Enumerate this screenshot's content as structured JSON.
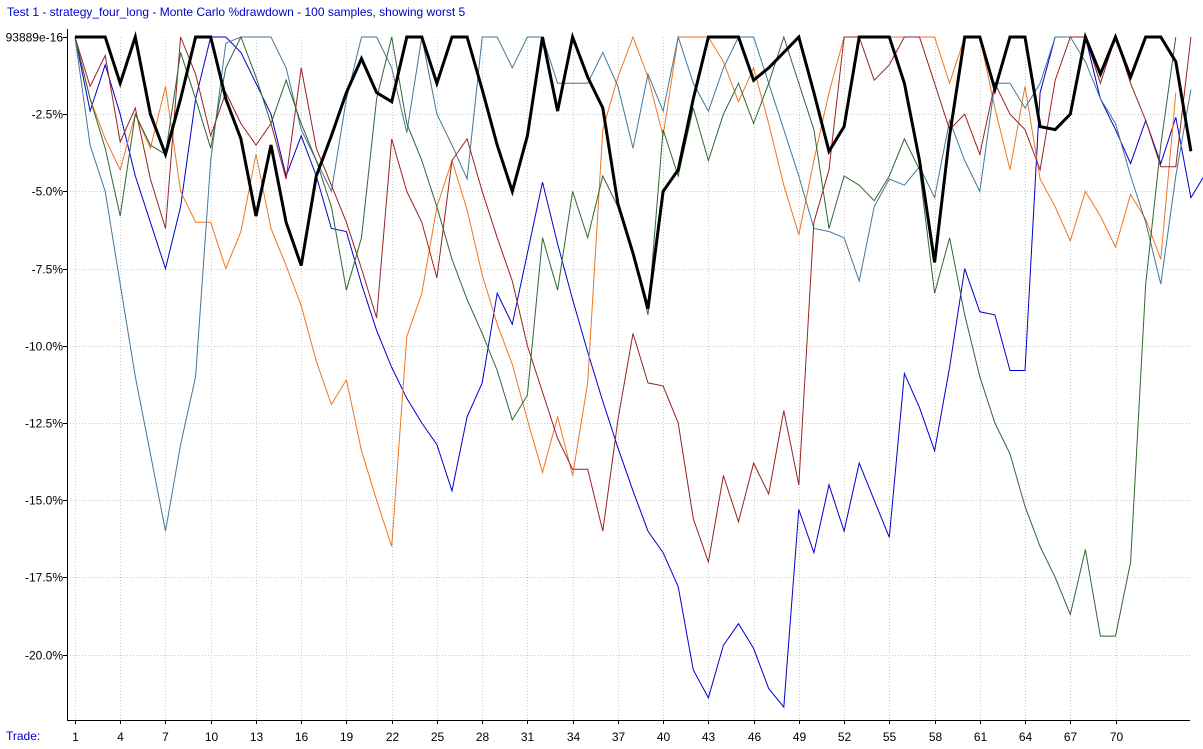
{
  "chart_data": {
    "type": "line",
    "title": "Test 1 - strategy_four_long - Monte Carlo %drawdown - 100 samples, showing worst 5",
    "xlabel": "Trade:",
    "ylabel": "",
    "y_top_label": "93889e-16",
    "yticks": [
      "-2.5%",
      "-5.0%",
      "-7.5%",
      "-10.0%",
      "-12.5%",
      "-15.0%",
      "-17.5%",
      "-20.0%"
    ],
    "ytick_values": [
      -2.5,
      -5.0,
      -7.5,
      -10.0,
      -12.5,
      -15.0,
      -17.5,
      -20.0
    ],
    "xticks": [
      "1",
      "4",
      "7",
      "10",
      "13",
      "16",
      "19",
      "22",
      "25",
      "28",
      "31",
      "34",
      "37",
      "40",
      "43",
      "46",
      "49",
      "52",
      "55",
      "58",
      "61",
      "64",
      "67",
      "70"
    ],
    "xtick_values": [
      1,
      4,
      7,
      10,
      13,
      16,
      19,
      22,
      25,
      28,
      31,
      34,
      37,
      40,
      43,
      46,
      49,
      52,
      55,
      58,
      61,
      64,
      67,
      70
    ],
    "xlim": [
      0,
      74
    ],
    "ylim": [
      -22,
      0
    ],
    "grid": true,
    "legend": "none",
    "series": [
      {
        "color": "#000000",
        "width": 3,
        "values": [
          0,
          0,
          0,
          -1.5,
          0,
          -2.5,
          -3.8,
          -2.0,
          0,
          0,
          -2.0,
          -3.3,
          -5.8,
          -3.5,
          -6.0,
          -7.4,
          -4.5,
          -3.2,
          -1.8,
          -0.7,
          -1.8,
          -2.1,
          0,
          0,
          -1.5,
          0,
          0,
          -1.7,
          -3.5,
          -5.0,
          -3.2,
          0,
          -2.4,
          0,
          -1.3,
          -2.3,
          -5.4,
          -7.0,
          -8.8,
          -5.0,
          -4.3,
          -2.0,
          0,
          0,
          0,
          -1.4,
          -1.0,
          -0.5,
          0,
          -1.8,
          -3.7,
          -2.9,
          0,
          0,
          0,
          -1.5,
          -4.0,
          -7.3,
          -3.2,
          0,
          0,
          -1.7,
          0,
          0,
          -2.9,
          -3.0,
          -2.5,
          0,
          -1.2,
          0,
          -1.3,
          0,
          0,
          -0.8,
          -3.7
        ]
      },
      {
        "color": "#0000cc",
        "width": 1,
        "values": [
          0,
          -2.4,
          -0.9,
          -2.5,
          -4.5,
          -6.0,
          -7.5,
          -5.5,
          -2.0,
          0,
          0,
          -0.5,
          -1.5,
          -2.5,
          -4.5,
          -3.2,
          -4.5,
          -6.2,
          -6.3,
          -8.0,
          -9.5,
          -10.7,
          -11.7,
          -12.5,
          -13.2,
          -14.7,
          -12.3,
          -11.2,
          -8.3,
          -9.3,
          -7.0,
          -4.7,
          -6.7,
          -8.5,
          -10.2,
          -11.8,
          -13.3,
          -14.7,
          -16.0,
          -16.7,
          -17.8,
          -20.5,
          -21.4,
          -19.7,
          -19.0,
          -19.8,
          -21.1,
          -21.7,
          -15.3,
          -16.7,
          -14.5,
          -16.0,
          -13.8,
          -15.0,
          -16.2,
          -10.9,
          -12.0,
          -13.4,
          -10.7,
          -7.5,
          -8.9,
          -9.0,
          -10.8,
          -10.8,
          -1.8,
          0,
          0,
          0,
          -2.0,
          -3.0,
          -4.1,
          -2.7,
          -4.1,
          -2.6,
          -5.2,
          -4.4,
          -6.0
        ]
      },
      {
        "color": "#ee7722",
        "width": 1,
        "values": [
          0,
          -2.0,
          -3.3,
          -4.3,
          -2.5,
          -3.6,
          -1.6,
          -5.0,
          -6.0,
          -6.0,
          -7.5,
          -6.3,
          -3.8,
          -6.2,
          -7.4,
          -8.7,
          -10.5,
          -11.9,
          -11.1,
          -13.4,
          -15.0,
          -16.5,
          -9.7,
          -8.3,
          -5.5,
          -4.0,
          -5.6,
          -7.7,
          -9.3,
          -10.6,
          -12.4,
          -14.1,
          -12.3,
          -14.2,
          -11.2,
          -3.0,
          -1.3,
          0,
          -1.3,
          -3.2,
          0,
          0,
          0,
          -0.8,
          -2.1,
          -1.0,
          -2.8,
          -4.8,
          -6.4,
          -4.0,
          -1.8,
          0,
          0,
          0,
          0,
          0,
          0,
          0,
          -1.5,
          0,
          0,
          -2.3,
          -4.3,
          -1.6,
          -4.6,
          -5.5,
          -6.6,
          -5.0,
          -5.8,
          -6.8,
          -5.1,
          -5.9,
          -7.2,
          -1.8
        ]
      },
      {
        "color": "#447799",
        "width": 1,
        "values": [
          0,
          -3.5,
          -5.0,
          -8.0,
          -11.0,
          -13.5,
          -16.0,
          -13.2,
          -11.0,
          -4.0,
          -0.2,
          0,
          0,
          0,
          -1.0,
          -3.0,
          -4.0,
          -5.0,
          -2.0,
          0,
          0,
          -1.0,
          -3.1,
          0,
          -2.5,
          -3.5,
          -4.6,
          0,
          0,
          -1.0,
          0,
          0,
          -1.5,
          -1.5,
          -1.5,
          -0.5,
          -1.6,
          -3.6,
          -1.2,
          -2.4,
          0,
          -1.5,
          -2.4,
          -1.0,
          0,
          0,
          -1.5,
          -3.0,
          -4.5,
          -6.2,
          -6.3,
          -6.5,
          -7.9,
          -5.5,
          -4.6,
          -4.8,
          -4.2,
          -5.2,
          -2.7,
          -4.0,
          -5.0,
          -1.5,
          -1.5,
          -2.3,
          -1.5,
          0,
          0,
          -0.8,
          -2.0,
          -2.8,
          -4.5,
          -6.0,
          -8.0,
          -4.5,
          -1.7
        ]
      },
      {
        "color": "#992222",
        "width": 1,
        "values": [
          0,
          -1.6,
          -0.6,
          -3.4,
          -2.3,
          -4.6,
          -6.2,
          0,
          -1.2,
          -3.2,
          -1.8,
          -2.8,
          -3.5,
          -2.8,
          -4.6,
          -1.0,
          -3.6,
          -4.8,
          -6.0,
          -7.5,
          -9.1,
          -3.3,
          -5.0,
          -6.0,
          -7.8,
          -4.0,
          -3.3,
          -5.0,
          -6.5,
          -7.9,
          -10.0,
          -11.5,
          -13.0,
          -14.0,
          -14.0,
          -16.0,
          -12.4,
          -9.6,
          -11.2,
          -11.3,
          -12.5,
          -15.6,
          -17.0,
          -14.2,
          -15.7,
          -13.8,
          -14.8,
          -12.1,
          -14.5,
          -6.0,
          -4.3,
          0,
          0,
          -1.4,
          -0.9,
          0,
          0,
          -1.5,
          -3.0,
          -2.5,
          -3.8,
          -1.5,
          -2.5,
          -3.0,
          -4.3,
          -1.4,
          0,
          0,
          -1.5,
          0,
          -1.5,
          -2.7,
          -4.2,
          -4.2,
          0
        ]
      },
      {
        "color": "#336633",
        "width": 1,
        "values": [
          0,
          -2.0,
          -3.6,
          -5.8,
          -2.5,
          -3.5,
          -3.8,
          -0.5,
          -2.0,
          -3.6,
          -1.0,
          0,
          -1.3,
          -2.8,
          -1.4,
          -2.8,
          -4.0,
          -5.5,
          -8.2,
          -6.5,
          -2.0,
          0,
          -2.8,
          -4.0,
          -5.5,
          -7.2,
          -8.5,
          -9.6,
          -10.8,
          -12.4,
          -11.6,
          -6.5,
          -8.2,
          -5.0,
          -6.5,
          -4.5,
          -5.5,
          -7.0,
          -9.0,
          -3.0,
          -4.5,
          -2.3,
          -4.0,
          -2.5,
          -1.5,
          -2.8,
          -1.5,
          0,
          -1.5,
          -3.0,
          -6.2,
          -4.5,
          -4.8,
          -5.3,
          -4.5,
          -3.3,
          -4.3,
          -8.3,
          -6.5,
          -9.0,
          -11.0,
          -12.5,
          -13.5,
          -15.2,
          -16.5,
          -17.5,
          -18.7,
          -16.6,
          -19.4,
          -19.4,
          -17.0,
          -8.0,
          -3.5,
          0
        ]
      }
    ]
  }
}
